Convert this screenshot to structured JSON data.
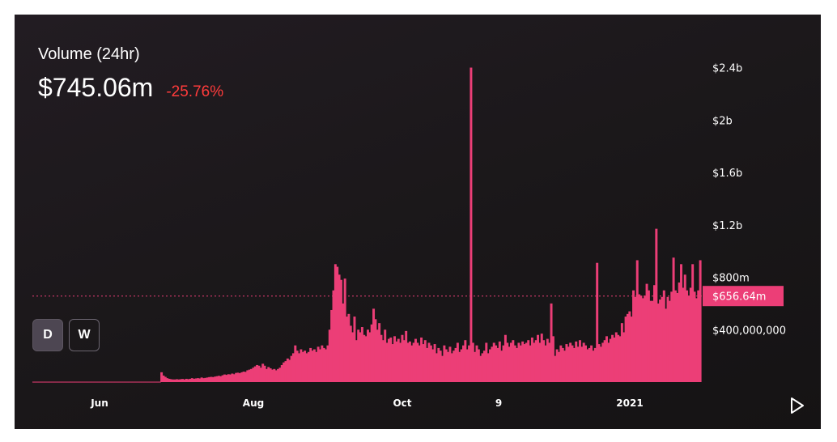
{
  "header": {
    "title": "Volume (24hr)",
    "value": "$745.06m",
    "change": "-25.76%"
  },
  "controls": {
    "interval_d": "D",
    "interval_w": "W",
    "play_icon": "play-icon"
  },
  "colors": {
    "bar": "#ec3e77",
    "background": "#1b181b",
    "change_negative": "#ff3b3b"
  },
  "chart_data": {
    "type": "bar",
    "x_tick_labels": [
      "Jun",
      "Aug",
      "Oct",
      "9",
      "2021"
    ],
    "y_tick_labels": [
      "$2.4b",
      "$2b",
      "$1.6b",
      "$1.2b",
      "$800m",
      "$400,000,000"
    ],
    "y_tick_values": [
      2400000000,
      2000000000,
      1600000000,
      1200000000,
      800000000,
      400000000
    ],
    "ylim": [
      0,
      2570000000
    ],
    "current_label": "$656.64m",
    "current_value": 656640000,
    "grid": false,
    "values": [
      3000000,
      3000000,
      3000000,
      3000000,
      3000000,
      3000000,
      3000000,
      3000000,
      3000000,
      3000000,
      3000000,
      3000000,
      3000000,
      3000000,
      3000000,
      3000000,
      3000000,
      3000000,
      3000000,
      3000000,
      3000000,
      3000000,
      3000000,
      3000000,
      3000000,
      3000000,
      3000000,
      3000000,
      3000000,
      3000000,
      3000000,
      3000000,
      3000000,
      3000000,
      3000000,
      3000000,
      3000000,
      3000000,
      3000000,
      3000000,
      3000000,
      3000000,
      3000000,
      3000000,
      3000000,
      3000000,
      3000000,
      3000000,
      3000000,
      3000000,
      3000000,
      3000000,
      3000000,
      3000000,
      3000000,
      3000000,
      3000000,
      3000000,
      3000000,
      3000000,
      3000000,
      3000000,
      3000000,
      3000000,
      3000000,
      3000000,
      3000000,
      75000000,
      50000000,
      40000000,
      30000000,
      25000000,
      22000000,
      20000000,
      20000000,
      22000000,
      20000000,
      22000000,
      24000000,
      20000000,
      25000000,
      22000000,
      25000000,
      30000000,
      25000000,
      28000000,
      30000000,
      28000000,
      35000000,
      30000000,
      32000000,
      35000000,
      38000000,
      40000000,
      38000000,
      42000000,
      45000000,
      48000000,
      45000000,
      52000000,
      58000000,
      55000000,
      60000000,
      58000000,
      65000000,
      60000000,
      70000000,
      72000000,
      68000000,
      75000000,
      80000000,
      78000000,
      90000000,
      95000000,
      100000000,
      110000000,
      120000000,
      130000000,
      125000000,
      110000000,
      140000000,
      125000000,
      100000000,
      115000000,
      105000000,
      95000000,
      100000000,
      90000000,
      100000000,
      110000000,
      130000000,
      150000000,
      160000000,
      180000000,
      170000000,
      200000000,
      220000000,
      280000000,
      240000000,
      220000000,
      250000000,
      230000000,
      240000000,
      220000000,
      230000000,
      260000000,
      240000000,
      250000000,
      230000000,
      270000000,
      250000000,
      280000000,
      260000000,
      250000000,
      280000000,
      400000000,
      550000000,
      700000000,
      900000000,
      880000000,
      820000000,
      780000000,
      600000000,
      790000000,
      500000000,
      520000000,
      430000000,
      380000000,
      500000000,
      320000000,
      400000000,
      380000000,
      420000000,
      360000000,
      350000000,
      400000000,
      380000000,
      440000000,
      560000000,
      480000000,
      400000000,
      450000000,
      360000000,
      320000000,
      400000000,
      300000000,
      330000000,
      340000000,
      290000000,
      350000000,
      310000000,
      330000000,
      300000000,
      360000000,
      320000000,
      390000000,
      300000000,
      310000000,
      280000000,
      300000000,
      330000000,
      300000000,
      280000000,
      340000000,
      290000000,
      320000000,
      260000000,
      300000000,
      280000000,
      250000000,
      290000000,
      220000000,
      260000000,
      240000000,
      200000000,
      280000000,
      250000000,
      230000000,
      270000000,
      220000000,
      240000000,
      260000000,
      300000000,
      230000000,
      250000000,
      280000000,
      320000000,
      250000000,
      280000000,
      2400000000,
      300000000,
      230000000,
      280000000,
      250000000,
      200000000,
      220000000,
      240000000,
      300000000,
      220000000,
      250000000,
      270000000,
      300000000,
      280000000,
      260000000,
      310000000,
      240000000,
      280000000,
      360000000,
      300000000,
      270000000,
      300000000,
      320000000,
      280000000,
      260000000,
      300000000,
      280000000,
      310000000,
      290000000,
      300000000,
      320000000,
      280000000,
      340000000,
      300000000,
      320000000,
      360000000,
      300000000,
      370000000,
      320000000,
      280000000,
      330000000,
      300000000,
      600000000,
      350000000,
      200000000,
      250000000,
      230000000,
      280000000,
      260000000,
      240000000,
      290000000,
      270000000,
      300000000,
      280000000,
      260000000,
      310000000,
      270000000,
      320000000,
      270000000,
      300000000,
      280000000,
      250000000,
      260000000,
      280000000,
      240000000,
      260000000,
      910000000,
      290000000,
      270000000,
      300000000,
      320000000,
      350000000,
      300000000,
      330000000,
      360000000,
      340000000,
      380000000,
      360000000,
      350000000,
      450000000,
      380000000,
      500000000,
      520000000,
      540000000,
      500000000,
      700000000,
      650000000,
      930000000,
      670000000,
      660000000,
      640000000,
      660000000,
      750000000,
      700000000,
      620000000,
      620000000,
      740000000,
      1170000000,
      600000000,
      630000000,
      650000000,
      700000000,
      560000000,
      650000000,
      620000000,
      690000000,
      950000000,
      700000000,
      680000000,
      760000000,
      900000000,
      720000000,
      820000000,
      700000000,
      660000000,
      720000000,
      900000000,
      690000000,
      640000000,
      700000000,
      930000000
    ]
  }
}
